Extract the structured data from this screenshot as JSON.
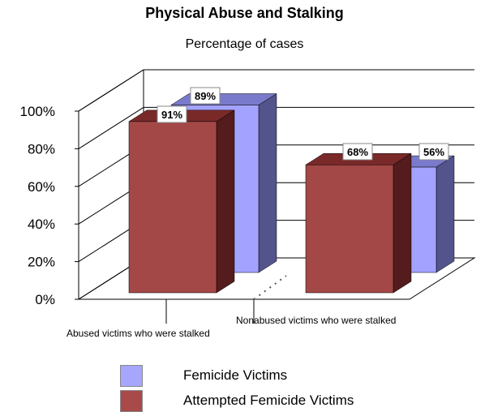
{
  "chart_data": {
    "type": "bar",
    "title": "Physical Abuse and Stalking",
    "subtitle": "Percentage of cases",
    "categories": [
      "Abused victims who were stalked",
      "Nonabused victims who were stalked"
    ],
    "series": [
      {
        "name": "Femicide Victims",
        "values": [
          89,
          56
        ],
        "value_labels": [
          "89%",
          "56%"
        ],
        "color": "#9999FF"
      },
      {
        "name": "Attempted Femicide Victims",
        "values": [
          91,
          68
        ],
        "value_labels": [
          "91%",
          "68%"
        ],
        "color": "#993333"
      }
    ],
    "ylim": [
      0,
      100
    ],
    "y_ticks": [
      0,
      20,
      40,
      60,
      80,
      100
    ],
    "y_tick_labels": [
      "0%",
      "20%",
      "40%",
      "60%",
      "80%",
      "100%"
    ],
    "grid": true,
    "three_d": true,
    "legend_position": "bottom-left"
  }
}
